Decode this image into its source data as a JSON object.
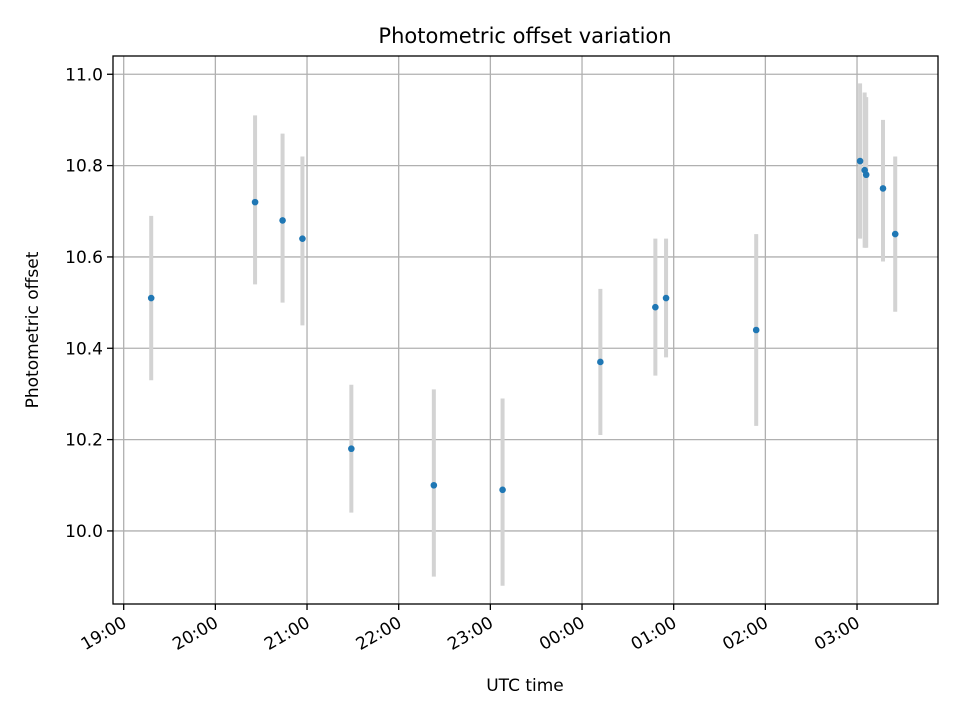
{
  "chart_data": {
    "type": "scatter",
    "title": "Photometric offset variation",
    "xlabel": "UTC time",
    "ylabel": "Photometric offset",
    "x_axis": {
      "type": "time",
      "range": [
        "18:53",
        "03:53"
      ],
      "ticks": [
        "19:00",
        "20:00",
        "21:00",
        "22:00",
        "23:00",
        "00:00",
        "01:00",
        "02:00",
        "03:00"
      ]
    },
    "y_axis": {
      "range": [
        9.84,
        11.04
      ],
      "ticks": [
        "10.0",
        "10.2",
        "10.4",
        "10.6",
        "10.8",
        "11.0"
      ]
    },
    "grid": true,
    "points": [
      {
        "time": "19:18",
        "y": 10.51,
        "err_low": 10.33,
        "err_high": 10.69
      },
      {
        "time": "20:26",
        "y": 10.72,
        "err_low": 10.54,
        "err_high": 10.91
      },
      {
        "time": "20:44",
        "y": 10.68,
        "err_low": 10.5,
        "err_high": 10.87
      },
      {
        "time": "20:57",
        "y": 10.64,
        "err_low": 10.45,
        "err_high": 10.82
      },
      {
        "time": "21:29",
        "y": 10.18,
        "err_low": 10.04,
        "err_high": 10.32
      },
      {
        "time": "22:23",
        "y": 10.1,
        "err_low": 9.9,
        "err_high": 10.31
      },
      {
        "time": "23:08",
        "y": 10.09,
        "err_low": 9.88,
        "err_high": 10.29
      },
      {
        "time": "00:12",
        "y": 10.37,
        "err_low": 10.21,
        "err_high": 10.53
      },
      {
        "time": "00:48",
        "y": 10.49,
        "err_low": 10.34,
        "err_high": 10.64
      },
      {
        "time": "00:55",
        "y": 10.51,
        "err_low": 10.38,
        "err_high": 10.64
      },
      {
        "time": "01:54",
        "y": 10.44,
        "err_low": 10.23,
        "err_high": 10.65
      },
      {
        "time": "03:02",
        "y": 10.81,
        "err_low": 10.64,
        "err_high": 10.98
      },
      {
        "time": "03:05",
        "y": 10.79,
        "err_low": 10.62,
        "err_high": 10.96
      },
      {
        "time": "03:06",
        "y": 10.78,
        "err_low": 10.62,
        "err_high": 10.95
      },
      {
        "time": "03:17",
        "y": 10.75,
        "err_low": 10.59,
        "err_high": 10.9
      },
      {
        "time": "03:25",
        "y": 10.65,
        "err_low": 10.48,
        "err_high": 10.82
      }
    ],
    "colors": {
      "point": "#1f77b4",
      "errorbar": "#d3d3d3",
      "grid": "#b0b0b0",
      "axes": "#000000"
    }
  }
}
